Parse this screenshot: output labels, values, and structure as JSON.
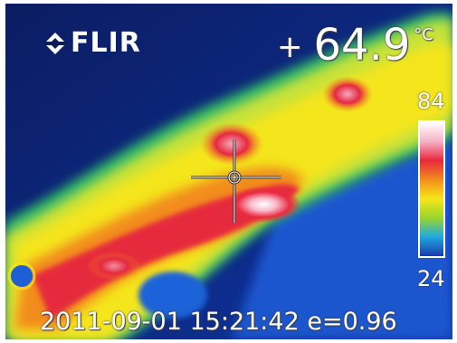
{
  "camera": {
    "brand": "FLIR",
    "logo_icon": "flir-diamond-icon"
  },
  "readout": {
    "sign": "+",
    "temperature": "64.9",
    "unit": "°C"
  },
  "scale": {
    "max": "84",
    "min": "24",
    "palette": [
      "#ffffff",
      "#f5b3c8",
      "#e8283c",
      "#f28c1c",
      "#f7e51a",
      "#9ad62c",
      "#1fa8e0",
      "#1a3aa8"
    ]
  },
  "status": {
    "datetime": "2011-09-01 15:21:42",
    "emissivity": "e=0.96"
  },
  "colors": {
    "background_cold": "#0a1c5c",
    "cool": "#1a5fd0",
    "warm": "#b8e03a",
    "hot": "#e8283c",
    "hottest": "#ffffff"
  }
}
